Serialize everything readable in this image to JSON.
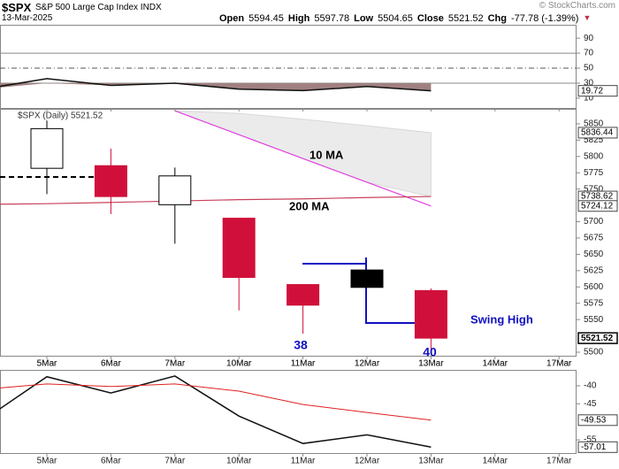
{
  "header": {
    "symbol": "$SPX",
    "name": "S&P 500 Large Cap Index",
    "exchange": "INDX",
    "date": "13-Mar-2025",
    "copyright": "© StockCharts.com",
    "quote": [
      {
        "label": "Open",
        "value": "5594.45"
      },
      {
        "label": "High",
        "value": "5597.78"
      },
      {
        "label": "Low",
        "value": "5504.65"
      },
      {
        "label": "Close",
        "value": "5521.52"
      },
      {
        "label": "Chg",
        "value": "-77.78 (-1.39%)"
      }
    ]
  },
  "chart_data": [
    {
      "type": "line",
      "categories": [
        null,
        "5Mar",
        "6Mar",
        "7Mar",
        "10Mar",
        "11Mar",
        "12Mar",
        "13Mar",
        "14Mar",
        "17Mar"
      ],
      "series": [
        {
          "color": "#111111",
          "values": [
            22,
            36,
            27,
            30,
            22,
            20,
            25.5,
            19.72,
            null,
            null
          ],
          "fill": "#a08080"
        }
      ],
      "reference_lines": [
        70,
        50,
        30
      ],
      "ylim": [
        -4.3,
        107.9
      ],
      "yticks": [
        10,
        30,
        50,
        70,
        90
      ]
    },
    {
      "type": "candlestick",
      "label": "$SPX (Daily) 5521.52",
      "categories": [
        null,
        "5Mar",
        "6Mar",
        "7Mar",
        "10Mar",
        "11Mar",
        "12Mar",
        "13Mar",
        "14Mar",
        "17Mar"
      ],
      "open": [
        null,
        5781.88,
        5785.87,
        5726.01,
        5705.37,
        5603.65,
        5626,
        5594.45,
        null,
        null
      ],
      "high": [
        null,
        5855,
        5812.08,
        5783.01,
        5705.37,
        5603.65,
        5626,
        5597.78,
        null,
        null
      ],
      "low": [
        null,
        5742.35,
        5711.64,
        5666.29,
        5564.02,
        5528.41,
        5599.3,
        5504.65,
        null,
        null
      ],
      "close": [
        null,
        5842.63,
        5738.52,
        5770.2,
        5614.56,
        5572.07,
        5599.3,
        5521.52,
        null,
        null
      ],
      "candle_styles": [
        null,
        "hollow",
        "red",
        "hollow",
        "red",
        "red",
        "black",
        "red",
        null,
        null
      ],
      "series": [
        {
          "color": "#e040e0",
          "values": [
            null,
            null,
            null,
            5870,
            5833.4,
            5796.8,
            5760.5,
            5724.12,
            null,
            null
          ]
        },
        {
          "color": "#c8405a",
          "values": [
            5726.5,
            5727.6,
            5729.6,
            5731.7,
            5733.8,
            5735,
            5737,
            5738.62,
            null,
            null
          ]
        },
        {
          "color": "#cccccc",
          "values": [
            null,
            null,
            null,
            5870,
            5866,
            5857,
            5847,
            5836.44,
            null,
            null
          ],
          "band": true
        }
      ],
      "annotations": [
        "10 MA",
        "200 MA",
        "38",
        "40",
        "Swing High"
      ],
      "ylim": [
        5493.2,
        5873
      ],
      "yticks": [
        5500,
        5550,
        5575,
        5600,
        5625,
        5650,
        5675,
        5700,
        5750,
        5775,
        5800,
        5825,
        5850
      ]
    },
    {
      "type": "line",
      "categories": [
        null,
        "5Mar",
        "6Mar",
        "7Mar",
        "10Mar",
        "11Mar",
        "12Mar",
        "13Mar",
        "14Mar",
        "17Mar"
      ],
      "series": [
        {
          "color": "#111111",
          "values": [
            -49.6,
            -37.5,
            -42,
            -37.3,
            -48.4,
            -56,
            -53.6,
            -57.01,
            null,
            null
          ]
        },
        {
          "color": "#e02020",
          "values": [
            -41,
            -39.5,
            -40.2,
            -39.5,
            -41.5,
            -45.2,
            -47.4,
            -49.53,
            null,
            null
          ]
        }
      ],
      "ylim": [
        -58.9,
        -35.6
      ],
      "yticks": [
        -40,
        -45,
        -55
      ]
    }
  ]
}
